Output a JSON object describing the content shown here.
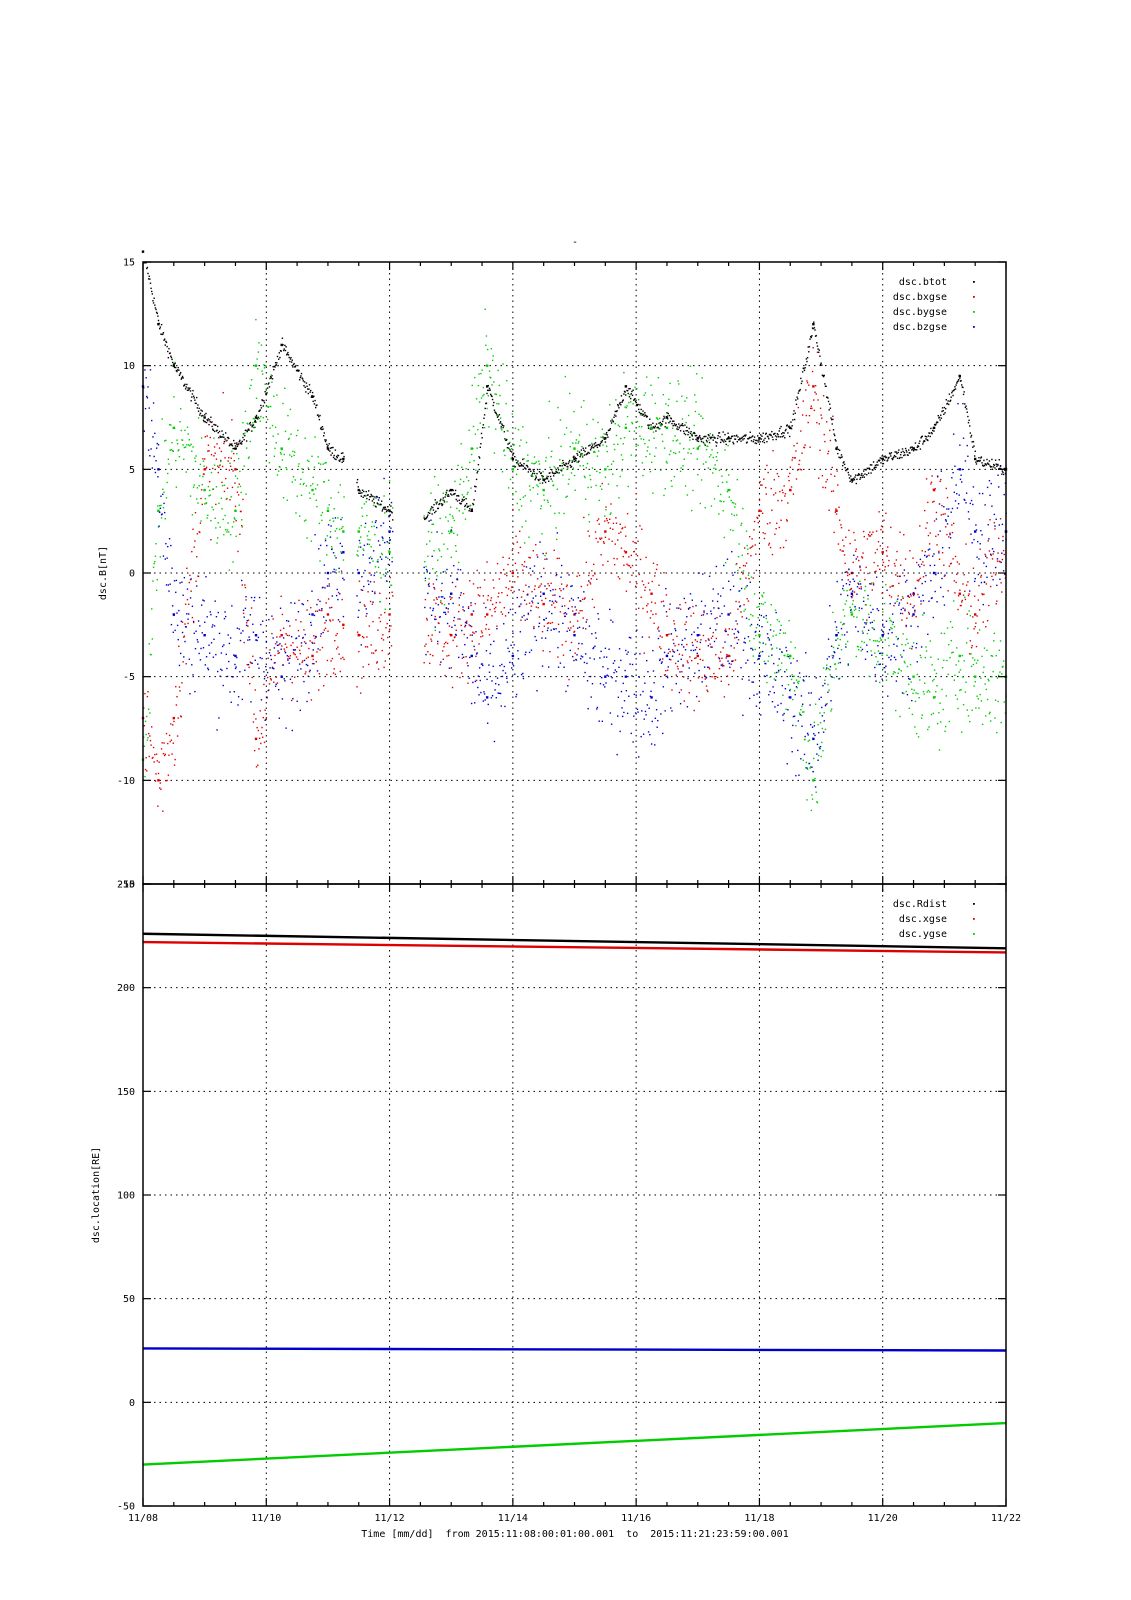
{
  "chart_data": [
    {
      "type": "scatter",
      "title": "-",
      "ylabel": "dsc.B[nT]",
      "ylim": [
        -15,
        15
      ],
      "yticks": [
        15,
        10,
        5,
        0,
        -5,
        -10,
        -15
      ],
      "xlim": [
        "11/08",
        "11/22"
      ],
      "grid": true,
      "legend_position": "top-right",
      "gaps": [
        [
          "11/11 06:00",
          "11/11 11:00"
        ],
        [
          "11/12 01:00",
          "11/12 13:00"
        ]
      ],
      "series": [
        {
          "name": "dsc.btot",
          "color": "#000000",
          "x": [
            "11/08 00:00",
            "11/08 06:00",
            "11/08 12:00",
            "11/09 00:00",
            "11/09 12:00",
            "11/09 20:00",
            "11/10 06:00",
            "11/10 18:00",
            "11/11 00:00",
            "11/11 06:00",
            "11/11 12:00",
            "11/12 00:00",
            "11/12 12:00",
            "11/13 00:00",
            "11/13 08:00",
            "11/13 14:00",
            "11/14 00:00",
            "11/14 12:00",
            "11/15 00:00",
            "11/15 12:00",
            "11/15 20:00",
            "11/16 06:00",
            "11/16 12:00",
            "11/17 00:00",
            "11/17 12:00",
            "11/18 00:00",
            "11/18 12:00",
            "11/18 21:00",
            "11/19 06:00",
            "11/19 12:00",
            "11/20 00:00",
            "11/20 12:00",
            "11/20 20:00",
            "11/21 06:00",
            "11/21 12:00",
            "11/22 00:00"
          ],
          "y": [
            15.5,
            12,
            10,
            7.5,
            6,
            7.5,
            11,
            8.5,
            6,
            5.5,
            4,
            3,
            2.5,
            4,
            3,
            9,
            5.5,
            4.5,
            5.5,
            6.5,
            9,
            7,
            7.5,
            6.5,
            6.5,
            6.5,
            7,
            12,
            6,
            4.5,
            5.5,
            6,
            7,
            9.5,
            5.5,
            5
          ]
        },
        {
          "name": "dsc.bxgse",
          "color": "#dd0000",
          "x": [
            "11/08 00:00",
            "11/08 06:00",
            "11/08 12:00",
            "11/09 00:00",
            "11/09 12:00",
            "11/09 20:00",
            "11/10 06:00",
            "11/10 18:00",
            "11/11 00:00",
            "11/11 06:00",
            "11/11 12:00",
            "11/12 00:00",
            "11/12 12:00",
            "11/13 00:00",
            "11/13 08:00",
            "11/13 14:00",
            "11/14 00:00",
            "11/14 12:00",
            "11/15 00:00",
            "11/15 12:00",
            "11/15 20:00",
            "11/16 06:00",
            "11/16 12:00",
            "11/17 00:00",
            "11/17 12:00",
            "11/18 00:00",
            "11/18 12:00",
            "11/18 21:00",
            "11/19 06:00",
            "11/19 12:00",
            "11/20 00:00",
            "11/20 12:00",
            "11/20 20:00",
            "11/21 06:00",
            "11/21 12:00",
            "11/22 00:00"
          ],
          "y": [
            -7,
            -10,
            -7,
            5,
            5,
            -8,
            -3,
            -4,
            -2,
            -2.5,
            -3,
            -2,
            -2,
            -3,
            -2,
            -2,
            0,
            -1.5,
            -2,
            2,
            1,
            -1,
            -3,
            -4,
            -4,
            3,
            4,
            9,
            3,
            0,
            1,
            -1,
            4,
            -1,
            -2,
            2
          ]
        },
        {
          "name": "dsc.bygse",
          "color": "#00cc00",
          "x": [
            "11/08 00:00",
            "11/08 06:00",
            "11/08 12:00",
            "11/09 00:00",
            "11/09 12:00",
            "11/09 20:00",
            "11/10 06:00",
            "11/10 18:00",
            "11/11 00:00",
            "11/11 06:00",
            "11/11 12:00",
            "11/12 00:00",
            "11/12 12:00",
            "11/13 00:00",
            "11/13 08:00",
            "11/13 14:00",
            "11/14 00:00",
            "11/14 12:00",
            "11/15 00:00",
            "11/15 12:00",
            "11/15 20:00",
            "11/16 06:00",
            "11/16 12:00",
            "11/17 00:00",
            "11/17 12:00",
            "11/18 00:00",
            "11/18 12:00",
            "11/18 21:00",
            "11/19 06:00",
            "11/19 12:00",
            "11/20 00:00",
            "11/20 12:00",
            "11/20 20:00",
            "11/21 06:00",
            "11/21 12:00",
            "11/22 00:00"
          ],
          "y": [
            -9,
            3,
            7,
            4,
            3,
            10,
            6,
            4,
            3,
            2,
            2,
            1,
            1,
            2,
            6,
            10,
            5,
            4,
            6,
            5,
            7,
            7,
            7,
            6,
            4,
            -3,
            -4,
            -10,
            -3,
            -2,
            -3,
            -5,
            -6,
            -4,
            -5,
            -5
          ]
        },
        {
          "name": "dsc.bzgse",
          "color": "#0000cc",
          "x": [
            "11/08 00:00",
            "11/08 06:00",
            "11/08 12:00",
            "11/09 00:00",
            "11/09 12:00",
            "11/09 20:00",
            "11/10 06:00",
            "11/10 18:00",
            "11/11 00:00",
            "11/11 06:00",
            "11/11 12:00",
            "11/12 00:00",
            "11/12 12:00",
            "11/13 00:00",
            "11/13 08:00",
            "11/13 14:00",
            "11/14 00:00",
            "11/14 12:00",
            "11/15 00:00",
            "11/15 12:00",
            "11/15 20:00",
            "11/16 06:00",
            "11/16 12:00",
            "11/17 00:00",
            "11/17 12:00",
            "11/18 00:00",
            "11/18 12:00",
            "11/18 21:00",
            "11/19 06:00",
            "11/19 12:00",
            "11/20 00:00",
            "11/20 12:00",
            "11/20 20:00",
            "11/21 06:00",
            "11/21 12:00",
            "11/22 00:00"
          ],
          "y": [
            9,
            5,
            -2,
            -3,
            -4,
            -3,
            -5,
            -2,
            0,
            1,
            0,
            2,
            -1,
            -1,
            -4,
            -6,
            -4,
            -1,
            -3,
            -5,
            -5,
            -6,
            -4,
            -3,
            -2,
            -4,
            -6,
            -8,
            -3,
            -1,
            -3,
            -2,
            0,
            5,
            2,
            2
          ]
        }
      ]
    },
    {
      "type": "line",
      "ylabel": "dsc.location[RE]",
      "ylim": [
        -50,
        250
      ],
      "yticks": [
        250,
        200,
        150,
        100,
        50,
        0,
        -50
      ],
      "xlim": [
        "11/08",
        "11/22"
      ],
      "x_tick_labels": [
        "11/08",
        "11/10",
        "11/12",
        "11/14",
        "11/16",
        "11/18",
        "11/20",
        "11/22"
      ],
      "xlabel": "Time [mm/dd]  from 2015:11:08:00:01:00.001  to  2015:11:21:23:59:00.001",
      "grid": true,
      "legend_position": "top-right",
      "series": [
        {
          "name": "dsc.Rdist",
          "color": "#000000",
          "x": [
            "11/08",
            "11/22"
          ],
          "y": [
            226,
            219
          ]
        },
        {
          "name": "dsc.xgse",
          "color": "#dd0000",
          "x": [
            "11/08",
            "11/22"
          ],
          "y": [
            222,
            217
          ]
        },
        {
          "name": "dsc.ygse",
          "color": "#00cc00",
          "x": [
            "11/08",
            "11/22"
          ],
          "y": [
            -30,
            -10
          ]
        },
        {
          "color": "#0000cc",
          "x": [
            "11/08",
            "11/22"
          ],
          "y": [
            26,
            25
          ]
        }
      ]
    }
  ]
}
